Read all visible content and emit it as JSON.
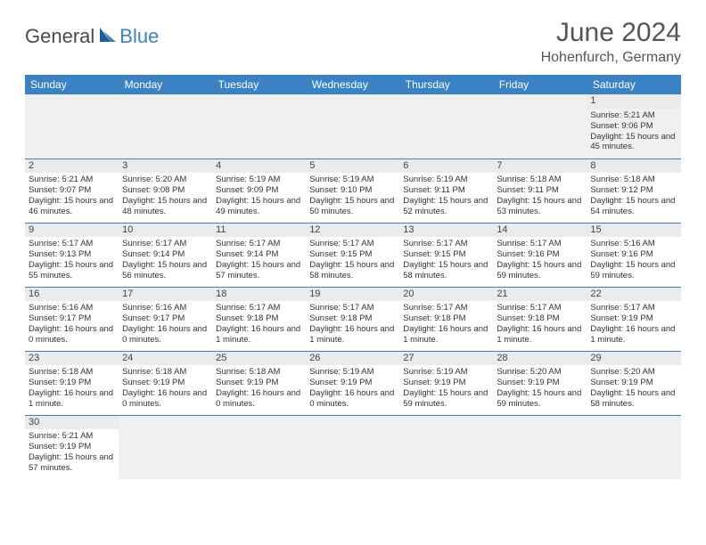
{
  "logo": {
    "part1": "General",
    "part2": "Blue"
  },
  "title": "June 2024",
  "location": "Hohenfurch, Germany",
  "colors": {
    "header_bg": "#3b82c4",
    "header_text": "#ffffff",
    "logo_gray": "#4a4a4a",
    "logo_blue": "#3b82c4",
    "cell_border": "#3b82c4",
    "daynum_bg": "#eceaea",
    "empty_bg": "#f0f0f0"
  },
  "weekdays": [
    "Sunday",
    "Monday",
    "Tuesday",
    "Wednesday",
    "Thursday",
    "Friday",
    "Saturday"
  ],
  "weeks": [
    [
      null,
      null,
      null,
      null,
      null,
      null,
      {
        "d": "1",
        "sr": "5:21 AM",
        "ss": "9:06 PM",
        "dl": "15 hours and 45 minutes."
      }
    ],
    [
      {
        "d": "2",
        "sr": "5:21 AM",
        "ss": "9:07 PM",
        "dl": "15 hours and 46 minutes."
      },
      {
        "d": "3",
        "sr": "5:20 AM",
        "ss": "9:08 PM",
        "dl": "15 hours and 48 minutes."
      },
      {
        "d": "4",
        "sr": "5:19 AM",
        "ss": "9:09 PM",
        "dl": "15 hours and 49 minutes."
      },
      {
        "d": "5",
        "sr": "5:19 AM",
        "ss": "9:10 PM",
        "dl": "15 hours and 50 minutes."
      },
      {
        "d": "6",
        "sr": "5:19 AM",
        "ss": "9:11 PM",
        "dl": "15 hours and 52 minutes."
      },
      {
        "d": "7",
        "sr": "5:18 AM",
        "ss": "9:11 PM",
        "dl": "15 hours and 53 minutes."
      },
      {
        "d": "8",
        "sr": "5:18 AM",
        "ss": "9:12 PM",
        "dl": "15 hours and 54 minutes."
      }
    ],
    [
      {
        "d": "9",
        "sr": "5:17 AM",
        "ss": "9:13 PM",
        "dl": "15 hours and 55 minutes."
      },
      {
        "d": "10",
        "sr": "5:17 AM",
        "ss": "9:14 PM",
        "dl": "15 hours and 56 minutes."
      },
      {
        "d": "11",
        "sr": "5:17 AM",
        "ss": "9:14 PM",
        "dl": "15 hours and 57 minutes."
      },
      {
        "d": "12",
        "sr": "5:17 AM",
        "ss": "9:15 PM",
        "dl": "15 hours and 58 minutes."
      },
      {
        "d": "13",
        "sr": "5:17 AM",
        "ss": "9:15 PM",
        "dl": "15 hours and 58 minutes."
      },
      {
        "d": "14",
        "sr": "5:17 AM",
        "ss": "9:16 PM",
        "dl": "15 hours and 59 minutes."
      },
      {
        "d": "15",
        "sr": "5:16 AM",
        "ss": "9:16 PM",
        "dl": "15 hours and 59 minutes."
      }
    ],
    [
      {
        "d": "16",
        "sr": "5:16 AM",
        "ss": "9:17 PM",
        "dl": "16 hours and 0 minutes."
      },
      {
        "d": "17",
        "sr": "5:16 AM",
        "ss": "9:17 PM",
        "dl": "16 hours and 0 minutes."
      },
      {
        "d": "18",
        "sr": "5:17 AM",
        "ss": "9:18 PM",
        "dl": "16 hours and 1 minute."
      },
      {
        "d": "19",
        "sr": "5:17 AM",
        "ss": "9:18 PM",
        "dl": "16 hours and 1 minute."
      },
      {
        "d": "20",
        "sr": "5:17 AM",
        "ss": "9:18 PM",
        "dl": "16 hours and 1 minute."
      },
      {
        "d": "21",
        "sr": "5:17 AM",
        "ss": "9:18 PM",
        "dl": "16 hours and 1 minute."
      },
      {
        "d": "22",
        "sr": "5:17 AM",
        "ss": "9:19 PM",
        "dl": "16 hours and 1 minute."
      }
    ],
    [
      {
        "d": "23",
        "sr": "5:18 AM",
        "ss": "9:19 PM",
        "dl": "16 hours and 1 minute."
      },
      {
        "d": "24",
        "sr": "5:18 AM",
        "ss": "9:19 PM",
        "dl": "16 hours and 0 minutes."
      },
      {
        "d": "25",
        "sr": "5:18 AM",
        "ss": "9:19 PM",
        "dl": "16 hours and 0 minutes."
      },
      {
        "d": "26",
        "sr": "5:19 AM",
        "ss": "9:19 PM",
        "dl": "16 hours and 0 minutes."
      },
      {
        "d": "27",
        "sr": "5:19 AM",
        "ss": "9:19 PM",
        "dl": "15 hours and 59 minutes."
      },
      {
        "d": "28",
        "sr": "5:20 AM",
        "ss": "9:19 PM",
        "dl": "15 hours and 59 minutes."
      },
      {
        "d": "29",
        "sr": "5:20 AM",
        "ss": "9:19 PM",
        "dl": "15 hours and 58 minutes."
      }
    ],
    [
      {
        "d": "30",
        "sr": "5:21 AM",
        "ss": "9:19 PM",
        "dl": "15 hours and 57 minutes."
      },
      null,
      null,
      null,
      null,
      null,
      null
    ]
  ],
  "labels": {
    "sunrise": "Sunrise:",
    "sunset": "Sunset:",
    "daylight": "Daylight:"
  }
}
